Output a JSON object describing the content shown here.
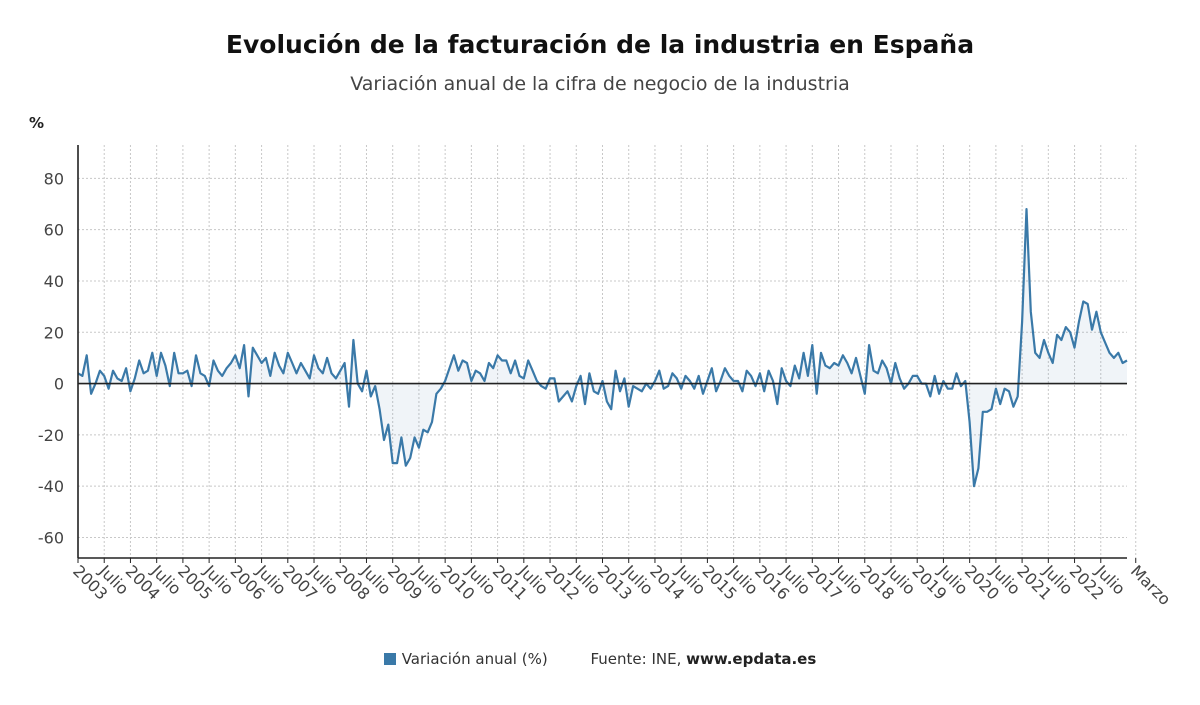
{
  "chart_data": {
    "type": "area",
    "title": "Evolución de la facturación de la industria en España",
    "subtitle": "Variación anual de la cifra de negocio de la industria",
    "unit_label": "%",
    "ylim": [
      -68,
      93
    ],
    "yticks": [
      80,
      60,
      40,
      20,
      0,
      -20,
      -40,
      -60
    ],
    "grid": true,
    "x_start": "2003-01",
    "x_end": "2023-03",
    "x_ticks": [
      {
        "label": "2003",
        "month": 0
      },
      {
        "label": "Julio",
        "month": 6
      },
      {
        "label": "2004",
        "month": 12
      },
      {
        "label": "Julio",
        "month": 18
      },
      {
        "label": "2005",
        "month": 24
      },
      {
        "label": "Julio",
        "month": 30
      },
      {
        "label": "2006",
        "month": 36
      },
      {
        "label": "Julio",
        "month": 42
      },
      {
        "label": "2007",
        "month": 48
      },
      {
        "label": "Julio",
        "month": 54
      },
      {
        "label": "2008",
        "month": 60
      },
      {
        "label": "Julio",
        "month": 66
      },
      {
        "label": "2009",
        "month": 72
      },
      {
        "label": "Julio",
        "month": 78
      },
      {
        "label": "2010",
        "month": 84
      },
      {
        "label": "Julio",
        "month": 90
      },
      {
        "label": "2011",
        "month": 96
      },
      {
        "label": "Julio",
        "month": 102
      },
      {
        "label": "2012",
        "month": 108
      },
      {
        "label": "Julio",
        "month": 114
      },
      {
        "label": "2013",
        "month": 120
      },
      {
        "label": "Julio",
        "month": 126
      },
      {
        "label": "2014",
        "month": 132
      },
      {
        "label": "Julio",
        "month": 138
      },
      {
        "label": "2015",
        "month": 144
      },
      {
        "label": "Julio",
        "month": 150
      },
      {
        "label": "2016",
        "month": 156
      },
      {
        "label": "Julio",
        "month": 162
      },
      {
        "label": "2017",
        "month": 168
      },
      {
        "label": "Julio",
        "month": 174
      },
      {
        "label": "2018",
        "month": 180
      },
      {
        "label": "Julio",
        "month": 186
      },
      {
        "label": "2019",
        "month": 192
      },
      {
        "label": "Julio",
        "month": 198
      },
      {
        "label": "2020",
        "month": 204
      },
      {
        "label": "Julio",
        "month": 210
      },
      {
        "label": "2021",
        "month": 216
      },
      {
        "label": "Julio",
        "month": 222
      },
      {
        "label": "2022",
        "month": 228
      },
      {
        "label": "Julio",
        "month": 234
      },
      {
        "label": "Marzo",
        "month": 242
      }
    ],
    "series": [
      {
        "name": "Variación anual (%)",
        "color": "#3a79a8",
        "values": [
          4,
          3,
          11,
          -4,
          0,
          5,
          3,
          -2,
          5,
          2,
          1,
          6,
          -3,
          2,
          9,
          4,
          5,
          12,
          3,
          12,
          7,
          -1,
          12,
          4,
          4,
          5,
          -1,
          11,
          4,
          3,
          -1,
          9,
          5,
          3,
          6,
          8,
          11,
          6,
          15,
          -5,
          14,
          11,
          8,
          10,
          3,
          12,
          7,
          4,
          12,
          8,
          4,
          8,
          5,
          2,
          11,
          6,
          4,
          10,
          4,
          2,
          5,
          8,
          -9,
          17,
          0,
          -3,
          5,
          -5,
          -1,
          -10,
          -22,
          -16,
          -31,
          -31,
          -21,
          -32,
          -29,
          -21,
          -25,
          -18,
          -19,
          -15,
          -4,
          -2,
          1,
          6,
          11,
          5,
          9,
          8,
          1,
          5,
          4,
          1,
          8,
          6,
          11,
          9,
          9,
          4,
          9,
          3,
          2,
          9,
          5,
          1,
          -1,
          -2,
          2,
          2,
          -7,
          -5,
          -3,
          -7,
          -1,
          3,
          -8,
          4,
          -3,
          -4,
          1,
          -7,
          -10,
          5,
          -3,
          2,
          -9,
          -1,
          -2,
          -3,
          0,
          -2,
          1,
          5,
          -2,
          -1,
          4,
          2,
          -2,
          3,
          1,
          -2,
          3,
          -4,
          1,
          6,
          -3,
          1,
          6,
          3,
          1,
          1,
          -3,
          5,
          3,
          -1,
          4,
          -3,
          5,
          1,
          -8,
          6,
          1,
          -1,
          7,
          2,
          12,
          3,
          15,
          -4,
          12,
          7,
          6,
          8,
          7,
          11,
          8,
          4,
          10,
          3,
          -4,
          15,
          5,
          4,
          9,
          6,
          0,
          8,
          2,
          -2,
          0,
          3,
          3,
          0,
          0,
          -5,
          3,
          -4,
          1,
          -2,
          -2,
          4,
          -1,
          1,
          -15,
          -40,
          -33,
          -11,
          -11,
          -10,
          -2,
          -8,
          -2,
          -3,
          -9,
          -5,
          24,
          68,
          28,
          12,
          10,
          17,
          12,
          8,
          19,
          17,
          22,
          20,
          14,
          24,
          32,
          31,
          21,
          28,
          20,
          16,
          12,
          10,
          12,
          8,
          9
        ]
      }
    ]
  },
  "footer": {
    "legend_label": "Variación anual (%)",
    "source_prefix": "Fuente: INE, ",
    "source_site": "www.epdata.es"
  }
}
